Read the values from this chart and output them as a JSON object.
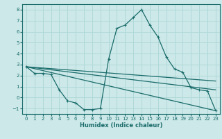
{
  "xlabel": "Humidex (Indice chaleur)",
  "background_color": "#cce8e8",
  "grid_color": "#b0d8d8",
  "line_color": "#1a6b6b",
  "x_range": [
    -0.5,
    23.5
  ],
  "y_range": [
    -1.5,
    8.5
  ],
  "yticks": [
    -1,
    0,
    1,
    2,
    3,
    4,
    5,
    6,
    7,
    8
  ],
  "xticks": [
    0,
    1,
    2,
    3,
    4,
    5,
    6,
    7,
    8,
    9,
    10,
    11,
    12,
    13,
    14,
    15,
    16,
    17,
    18,
    19,
    20,
    21,
    22,
    23
  ],
  "series": [
    {
      "x": [
        0,
        1,
        2,
        3,
        4,
        5,
        6,
        7,
        8,
        9,
        10,
        11,
        12,
        13,
        14,
        15,
        16,
        17,
        18,
        19,
        20,
        21,
        22,
        23
      ],
      "y": [
        2.8,
        2.2,
        2.2,
        2.1,
        0.7,
        -0.3,
        -0.5,
        -1.1,
        -1.1,
        -1.0,
        3.5,
        6.3,
        6.6,
        7.3,
        8.0,
        6.6,
        5.5,
        3.7,
        2.6,
        2.3,
        0.9,
        0.7,
        0.6,
        -1.2
      ],
      "has_markers": true
    },
    {
      "x": [
        0,
        23
      ],
      "y": [
        2.8,
        1.5
      ],
      "has_markers": false
    },
    {
      "comment": "middle line from (0,2.8) to (23,0.7)",
      "x": [
        0,
        23
      ],
      "y": [
        2.8,
        0.7
      ],
      "has_markers": false
    },
    {
      "comment": "lower line from (0,2.8) to (23,-1.2)",
      "x": [
        0,
        23
      ],
      "y": [
        2.8,
        -1.2
      ],
      "has_markers": false
    }
  ]
}
